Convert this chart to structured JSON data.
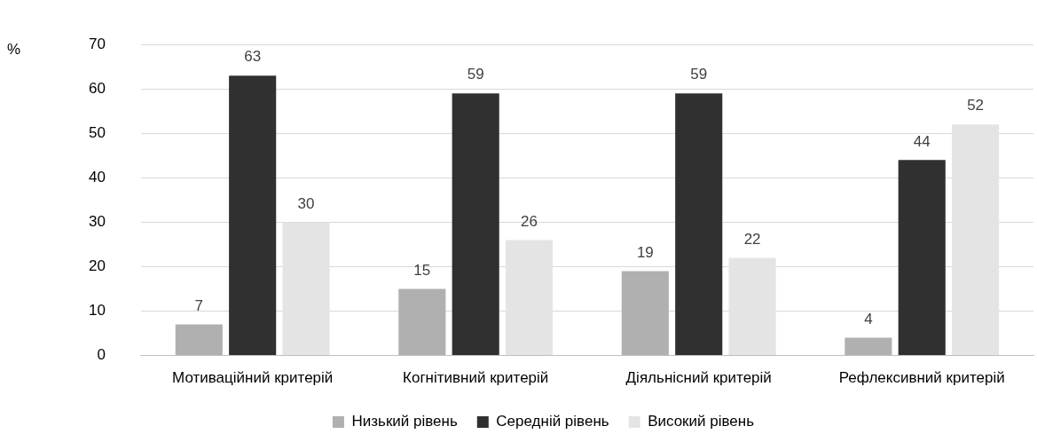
{
  "chart_data": {
    "type": "bar",
    "ylabel": "%",
    "categories": [
      "Мотиваційний критерій",
      "Когнітивний критерій",
      "Діяльнісний критерій",
      "Рефлексивний критерій"
    ],
    "series": [
      {
        "name": "Низький рівень",
        "color": "#b0b0b0",
        "values": [
          7,
          15,
          19,
          4
        ]
      },
      {
        "name": "Середній рівень",
        "color": "#303030",
        "values": [
          63,
          59,
          59,
          44
        ]
      },
      {
        "name": "Високий рівень",
        "color": "#e4e4e4",
        "values": [
          30,
          26,
          22,
          52
        ]
      }
    ],
    "ylim": [
      0,
      70
    ],
    "yticks": [
      0,
      10,
      20,
      30,
      40,
      50,
      60,
      70
    ],
    "grid": "y",
    "legend": "bottom",
    "data_labels": true
  }
}
